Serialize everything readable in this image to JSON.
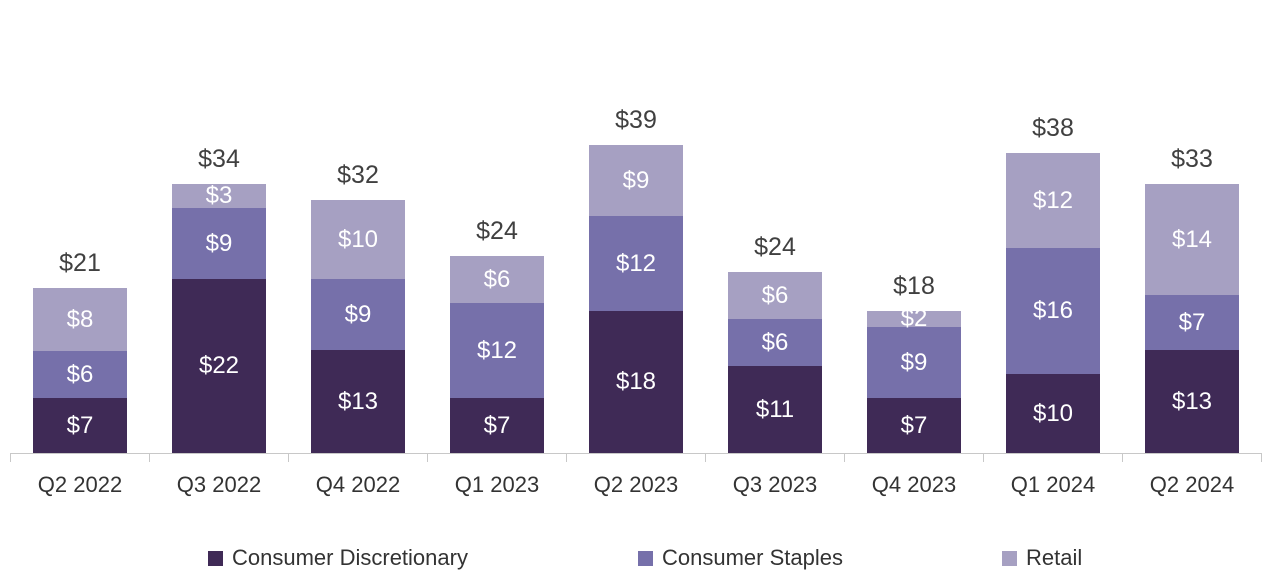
{
  "chart_data": {
    "type": "bar",
    "stacked": true,
    "title": "",
    "xlabel": "",
    "ylabel": "",
    "value_prefix": "$",
    "grid": false,
    "legend_position": "bottom",
    "ylim": [
      0,
      40
    ],
    "categories": [
      "Q2 2022",
      "Q3 2022",
      "Q4 2022",
      "Q1 2023",
      "Q2 2023",
      "Q3 2023",
      "Q4 2023",
      "Q1 2024",
      "Q2 2024"
    ],
    "series": [
      {
        "name": "Consumer Discretionary",
        "color": "#3F2A56",
        "values": [
          7,
          22,
          13,
          7,
          18,
          11,
          7,
          10,
          13
        ]
      },
      {
        "name": "Consumer Staples",
        "color": "#7670AA",
        "values": [
          6,
          9,
          9,
          12,
          12,
          6,
          9,
          16,
          7
        ]
      },
      {
        "name": "Retail",
        "color": "#A6A0C2",
        "values": [
          8,
          3,
          10,
          6,
          9,
          6,
          2,
          12,
          14
        ]
      }
    ],
    "totals": [
      21,
      34,
      32,
      24,
      39,
      24,
      18,
      38,
      33
    ],
    "total_labels": [
      "$21",
      "$34",
      "$32",
      "$24",
      "$39",
      "$24",
      "$18",
      "$38",
      "$33"
    ],
    "colors": {
      "axis": "#c8c8c8",
      "total_label": "#404040",
      "category_label": "#333333",
      "segment_label": "#ffffff"
    }
  }
}
